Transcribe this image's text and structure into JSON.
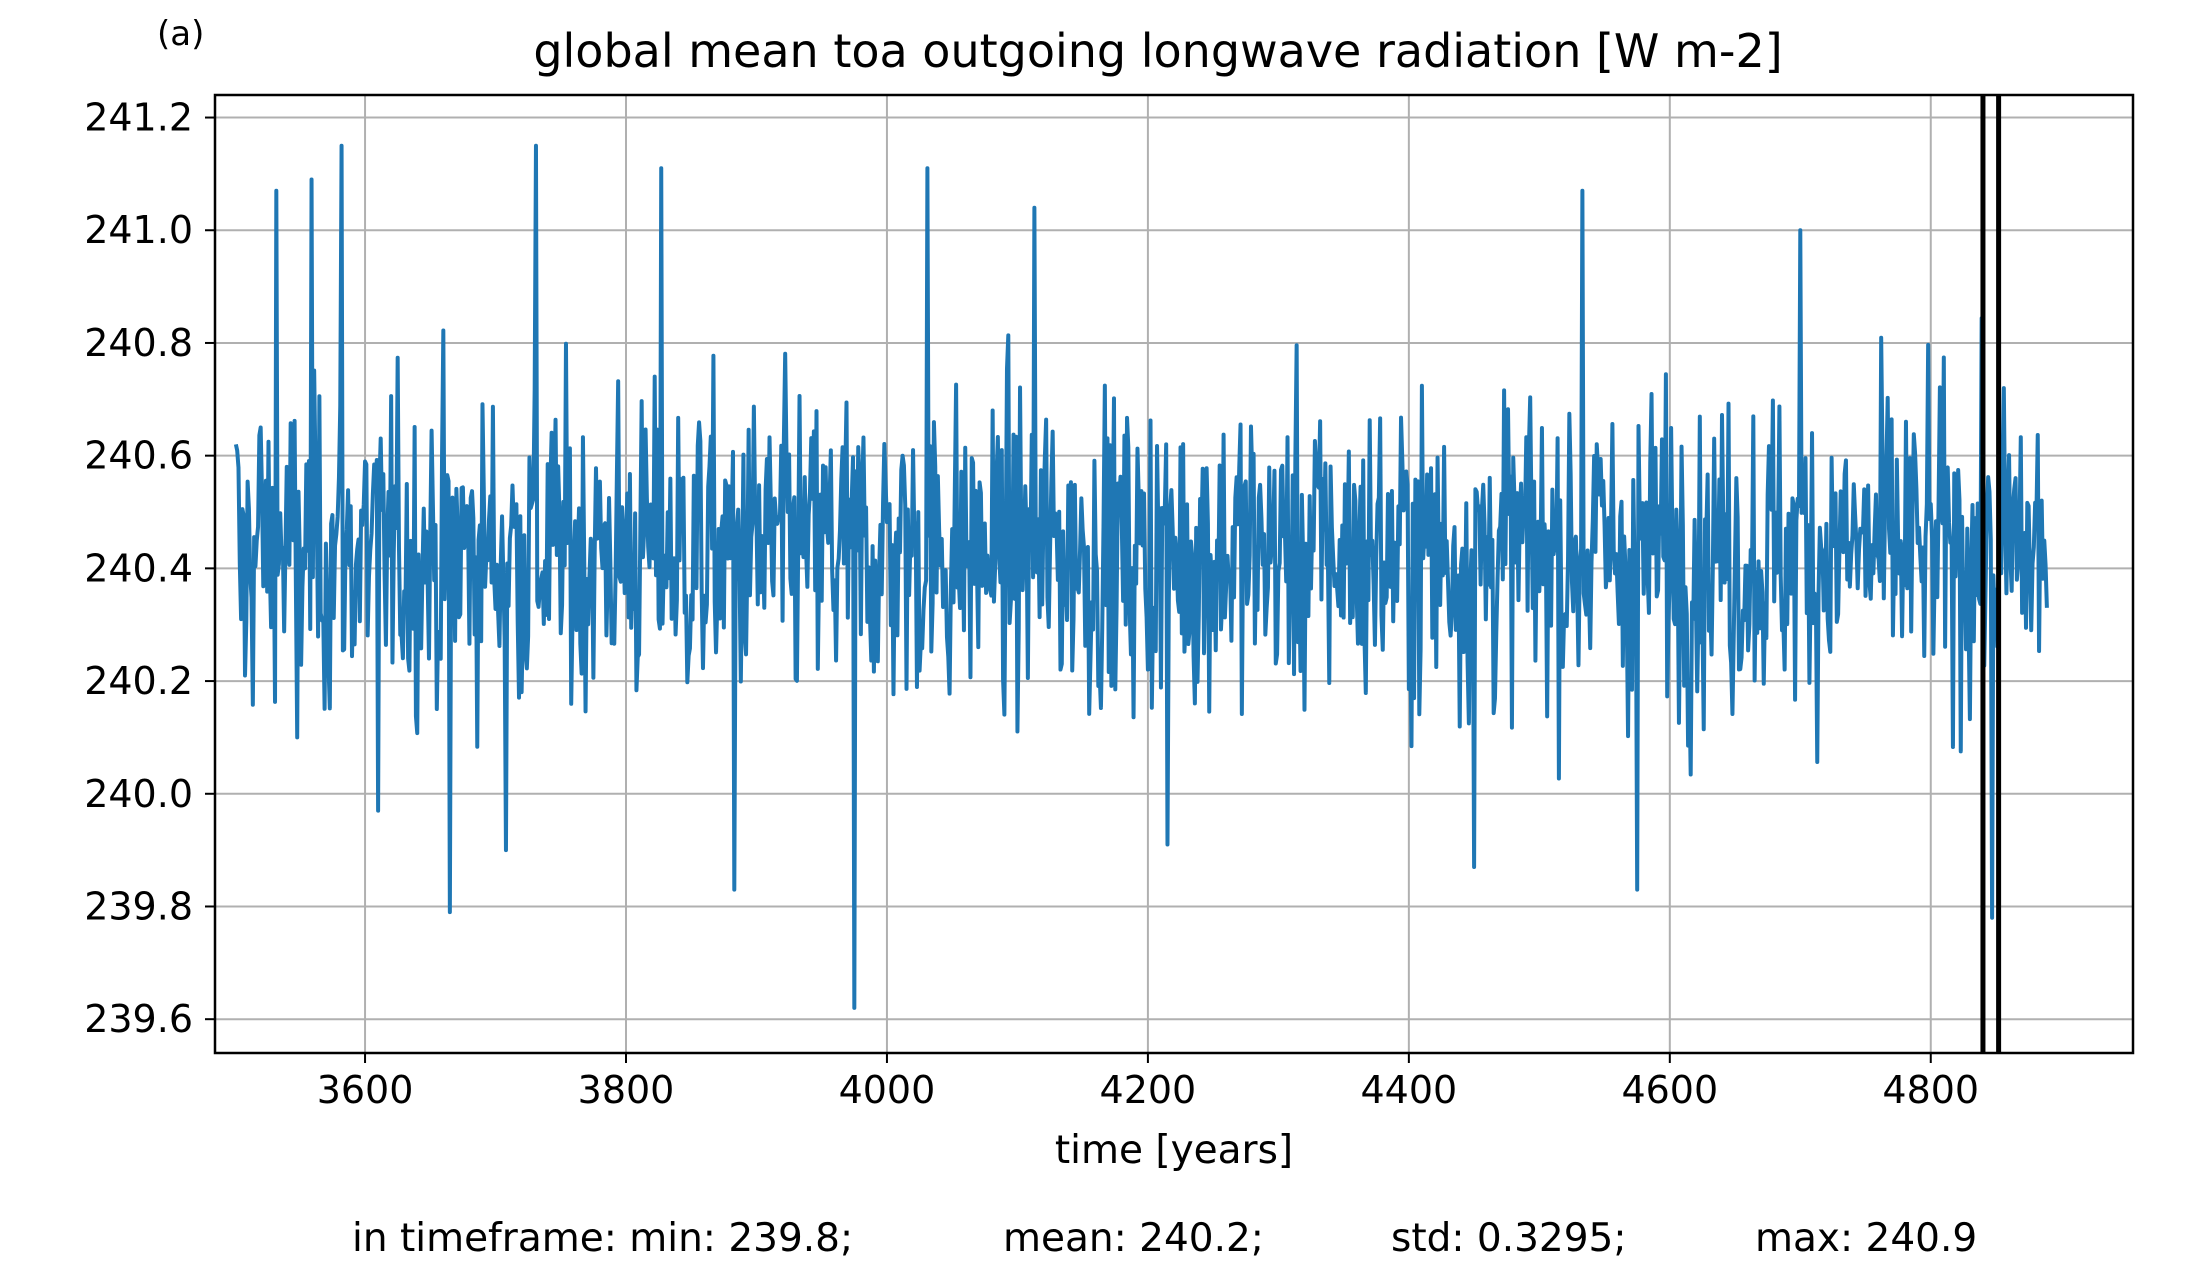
{
  "panel_label": "(a)",
  "chart_data": {
    "type": "line",
    "title": "global mean toa outgoing longwave radiation [W m-2]",
    "xlabel": "time [years]",
    "ylabel": "",
    "xlim": [
      3485,
      4955
    ],
    "ylim": [
      239.54,
      241.24
    ],
    "xticks": [
      3600,
      3800,
      4000,
      4200,
      4400,
      4600,
      4800
    ],
    "xtick_labels": [
      "3600",
      "3800",
      "4000",
      "4200",
      "4400",
      "4600",
      "4800"
    ],
    "yticks": [
      239.6,
      239.8,
      240.0,
      240.2,
      240.4,
      240.6,
      240.8,
      241.0,
      241.2
    ],
    "ytick_labels": [
      "239.6",
      "239.8",
      "240.0",
      "240.2",
      "240.4",
      "240.6",
      "240.8",
      "241.0",
      "241.2"
    ],
    "grid": true,
    "series": [
      {
        "color": "#1f77b4",
        "x_start": 3501,
        "x_end": 4889,
        "noise_range": [
          239.62,
          241.15
        ],
        "values": [
          {
            "x": 3501,
            "y": 240.62
          },
          {
            "x": 3505,
            "y": 240.31
          },
          {
            "x": 3508,
            "y": 240.21
          },
          {
            "x": 3520,
            "y": 240.65
          },
          {
            "x": 3532,
            "y": 241.07
          },
          {
            "x": 3548,
            "y": 240.1
          },
          {
            "x": 3559,
            "y": 241.09
          },
          {
            "x": 3582,
            "y": 241.15
          },
          {
            "x": 3610,
            "y": 239.97
          },
          {
            "x": 3665,
            "y": 239.79
          },
          {
            "x": 3708,
            "y": 239.9
          },
          {
            "x": 3731,
            "y": 241.15
          },
          {
            "x": 3827,
            "y": 241.11
          },
          {
            "x": 3883,
            "y": 239.83
          },
          {
            "x": 3975,
            "y": 239.62
          },
          {
            "x": 4031,
            "y": 241.11
          },
          {
            "x": 4113,
            "y": 241.04
          },
          {
            "x": 4215,
            "y": 239.91
          },
          {
            "x": 4450,
            "y": 239.87
          },
          {
            "x": 4533,
            "y": 241.07
          },
          {
            "x": 4575,
            "y": 239.83
          },
          {
            "x": 4700,
            "y": 241.0
          },
          {
            "x": 4847,
            "y": 239.78
          },
          {
            "x": 4889,
            "y": 240.33
          }
        ]
      }
    ],
    "vertical_lines": [
      {
        "x": 4840,
        "color": "#000000"
      },
      {
        "x": 4852,
        "color": "#000000"
      }
    ]
  },
  "stats": {
    "min_text": "in timeframe: min: 239.8;",
    "mean_text": "mean: 240.2;",
    "std_text": "std: 0.3295;",
    "max_text": "max: 240.9"
  }
}
